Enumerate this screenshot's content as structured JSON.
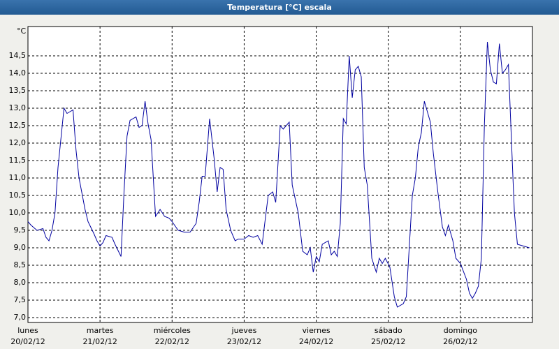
{
  "chart_data": {
    "type": "line",
    "title": "Temperatura [°C] escala",
    "y_unit": "°C",
    "xlim": [
      0,
      168
    ],
    "xticks": [
      {
        "value": 0,
        "label": "lunes",
        "date": "20/02/12"
      },
      {
        "value": 24,
        "label": "martes",
        "date": "21/02/12"
      },
      {
        "value": 48,
        "label": "miércoles",
        "date": "22/02/12"
      },
      {
        "value": 72,
        "label": "jueves",
        "date": "23/02/12"
      },
      {
        "value": 96,
        "label": "viernes",
        "date": "24/02/12"
      },
      {
        "value": 120,
        "label": "sábado",
        "date": "25/02/12"
      },
      {
        "value": 144,
        "label": "domingo",
        "date": "26/02/12"
      }
    ],
    "ylim": [
      6.86,
      15.34
    ],
    "yticks": [
      {
        "value": 7,
        "label": "7,0"
      },
      {
        "value": 7.5,
        "label": "7,5"
      },
      {
        "value": 8,
        "label": "8,0"
      },
      {
        "value": 8.5,
        "label": "8,5"
      },
      {
        "value": 9,
        "label": "9,0"
      },
      {
        "value": 9.5,
        "label": "9,5"
      },
      {
        "value": 10,
        "label": "10,0"
      },
      {
        "value": 10.5,
        "label": "10,5"
      },
      {
        "value": 11,
        "label": "11,0"
      },
      {
        "value": 11.5,
        "label": "11,5"
      },
      {
        "value": 12,
        "label": "12,0"
      },
      {
        "value": 12.5,
        "label": "12,5"
      },
      {
        "value": 13,
        "label": "13,0"
      },
      {
        "value": 13.5,
        "label": "13,5"
      },
      {
        "value": 14,
        "label": "14,0"
      },
      {
        "value": 14.5,
        "label": "14,5"
      }
    ],
    "grid": true,
    "series": [
      {
        "color": "#0000a0",
        "x": [
          0,
          1,
          3,
          5,
          6,
          7,
          8,
          9,
          10,
          12,
          13,
          15,
          16,
          17,
          19,
          20,
          22,
          23,
          24,
          25,
          26,
          28,
          29,
          31,
          32,
          33,
          34,
          36,
          37,
          38,
          39,
          40,
          41,
          42.5,
          44,
          45.5,
          47,
          48,
          50,
          52,
          54,
          56,
          57,
          58,
          59,
          60.5,
          62,
          63,
          64,
          65,
          66,
          67.5,
          69,
          70,
          72,
          73.5,
          75,
          76.5,
          78,
          80,
          81.5,
          82.5,
          84,
          85,
          87,
          88,
          90,
          91.5,
          93,
          94,
          95,
          96,
          97,
          98,
          100,
          101,
          102,
          103,
          104,
          105,
          106,
          107,
          108,
          109,
          110,
          111,
          112,
          113,
          114.5,
          116,
          117,
          118,
          119,
          120.5,
          122,
          123,
          125,
          126,
          128,
          129,
          130,
          131,
          132,
          134,
          135,
          136.5,
          138,
          139,
          140,
          141.5,
          142.5,
          144,
          146,
          147,
          148,
          149,
          150,
          151,
          152,
          153,
          154,
          155,
          156,
          157,
          158,
          159,
          160,
          161.5,
          162,
          163,
          165,
          167
        ],
        "values": [
          9.75,
          9.65,
          9.5,
          9.55,
          9.3,
          9.2,
          9.5,
          10.0,
          11.3,
          13.0,
          12.85,
          12.95,
          11.8,
          11.0,
          10.1,
          9.75,
          9.4,
          9.2,
          9.05,
          9.15,
          9.35,
          9.3,
          9.1,
          8.75,
          10.6,
          12.2,
          12.65,
          12.75,
          12.45,
          12.5,
          13.2,
          12.55,
          12.1,
          9.9,
          10.1,
          9.9,
          9.85,
          9.75,
          9.5,
          9.45,
          9.45,
          9.7,
          10.3,
          11.05,
          11.05,
          12.7,
          11.55,
          10.6,
          11.3,
          11.25,
          10.1,
          9.5,
          9.2,
          9.25,
          9.25,
          9.35,
          9.3,
          9.35,
          9.1,
          10.5,
          10.6,
          10.3,
          12.5,
          12.4,
          12.6,
          10.8,
          10.0,
          8.9,
          8.8,
          9.0,
          8.3,
          8.75,
          8.6,
          9.1,
          9.2,
          8.8,
          8.9,
          8.75,
          9.7,
          12.7,
          12.55,
          14.5,
          13.3,
          14.1,
          14.2,
          13.9,
          11.3,
          10.8,
          8.7,
          8.3,
          8.7,
          8.55,
          8.7,
          8.45,
          7.6,
          7.3,
          7.4,
          7.6,
          10.5,
          11.0,
          11.9,
          12.3,
          13.2,
          12.6,
          11.7,
          10.6,
          9.6,
          9.35,
          9.65,
          9.2,
          8.7,
          8.55,
          8.1,
          7.7,
          7.55,
          7.7,
          7.9,
          8.7,
          12.5,
          14.9,
          14.1,
          13.75,
          13.7,
          14.85,
          14.0,
          14.1,
          14.25,
          11.0,
          10.0,
          9.1,
          9.05,
          9.0
        ]
      }
    ]
  }
}
